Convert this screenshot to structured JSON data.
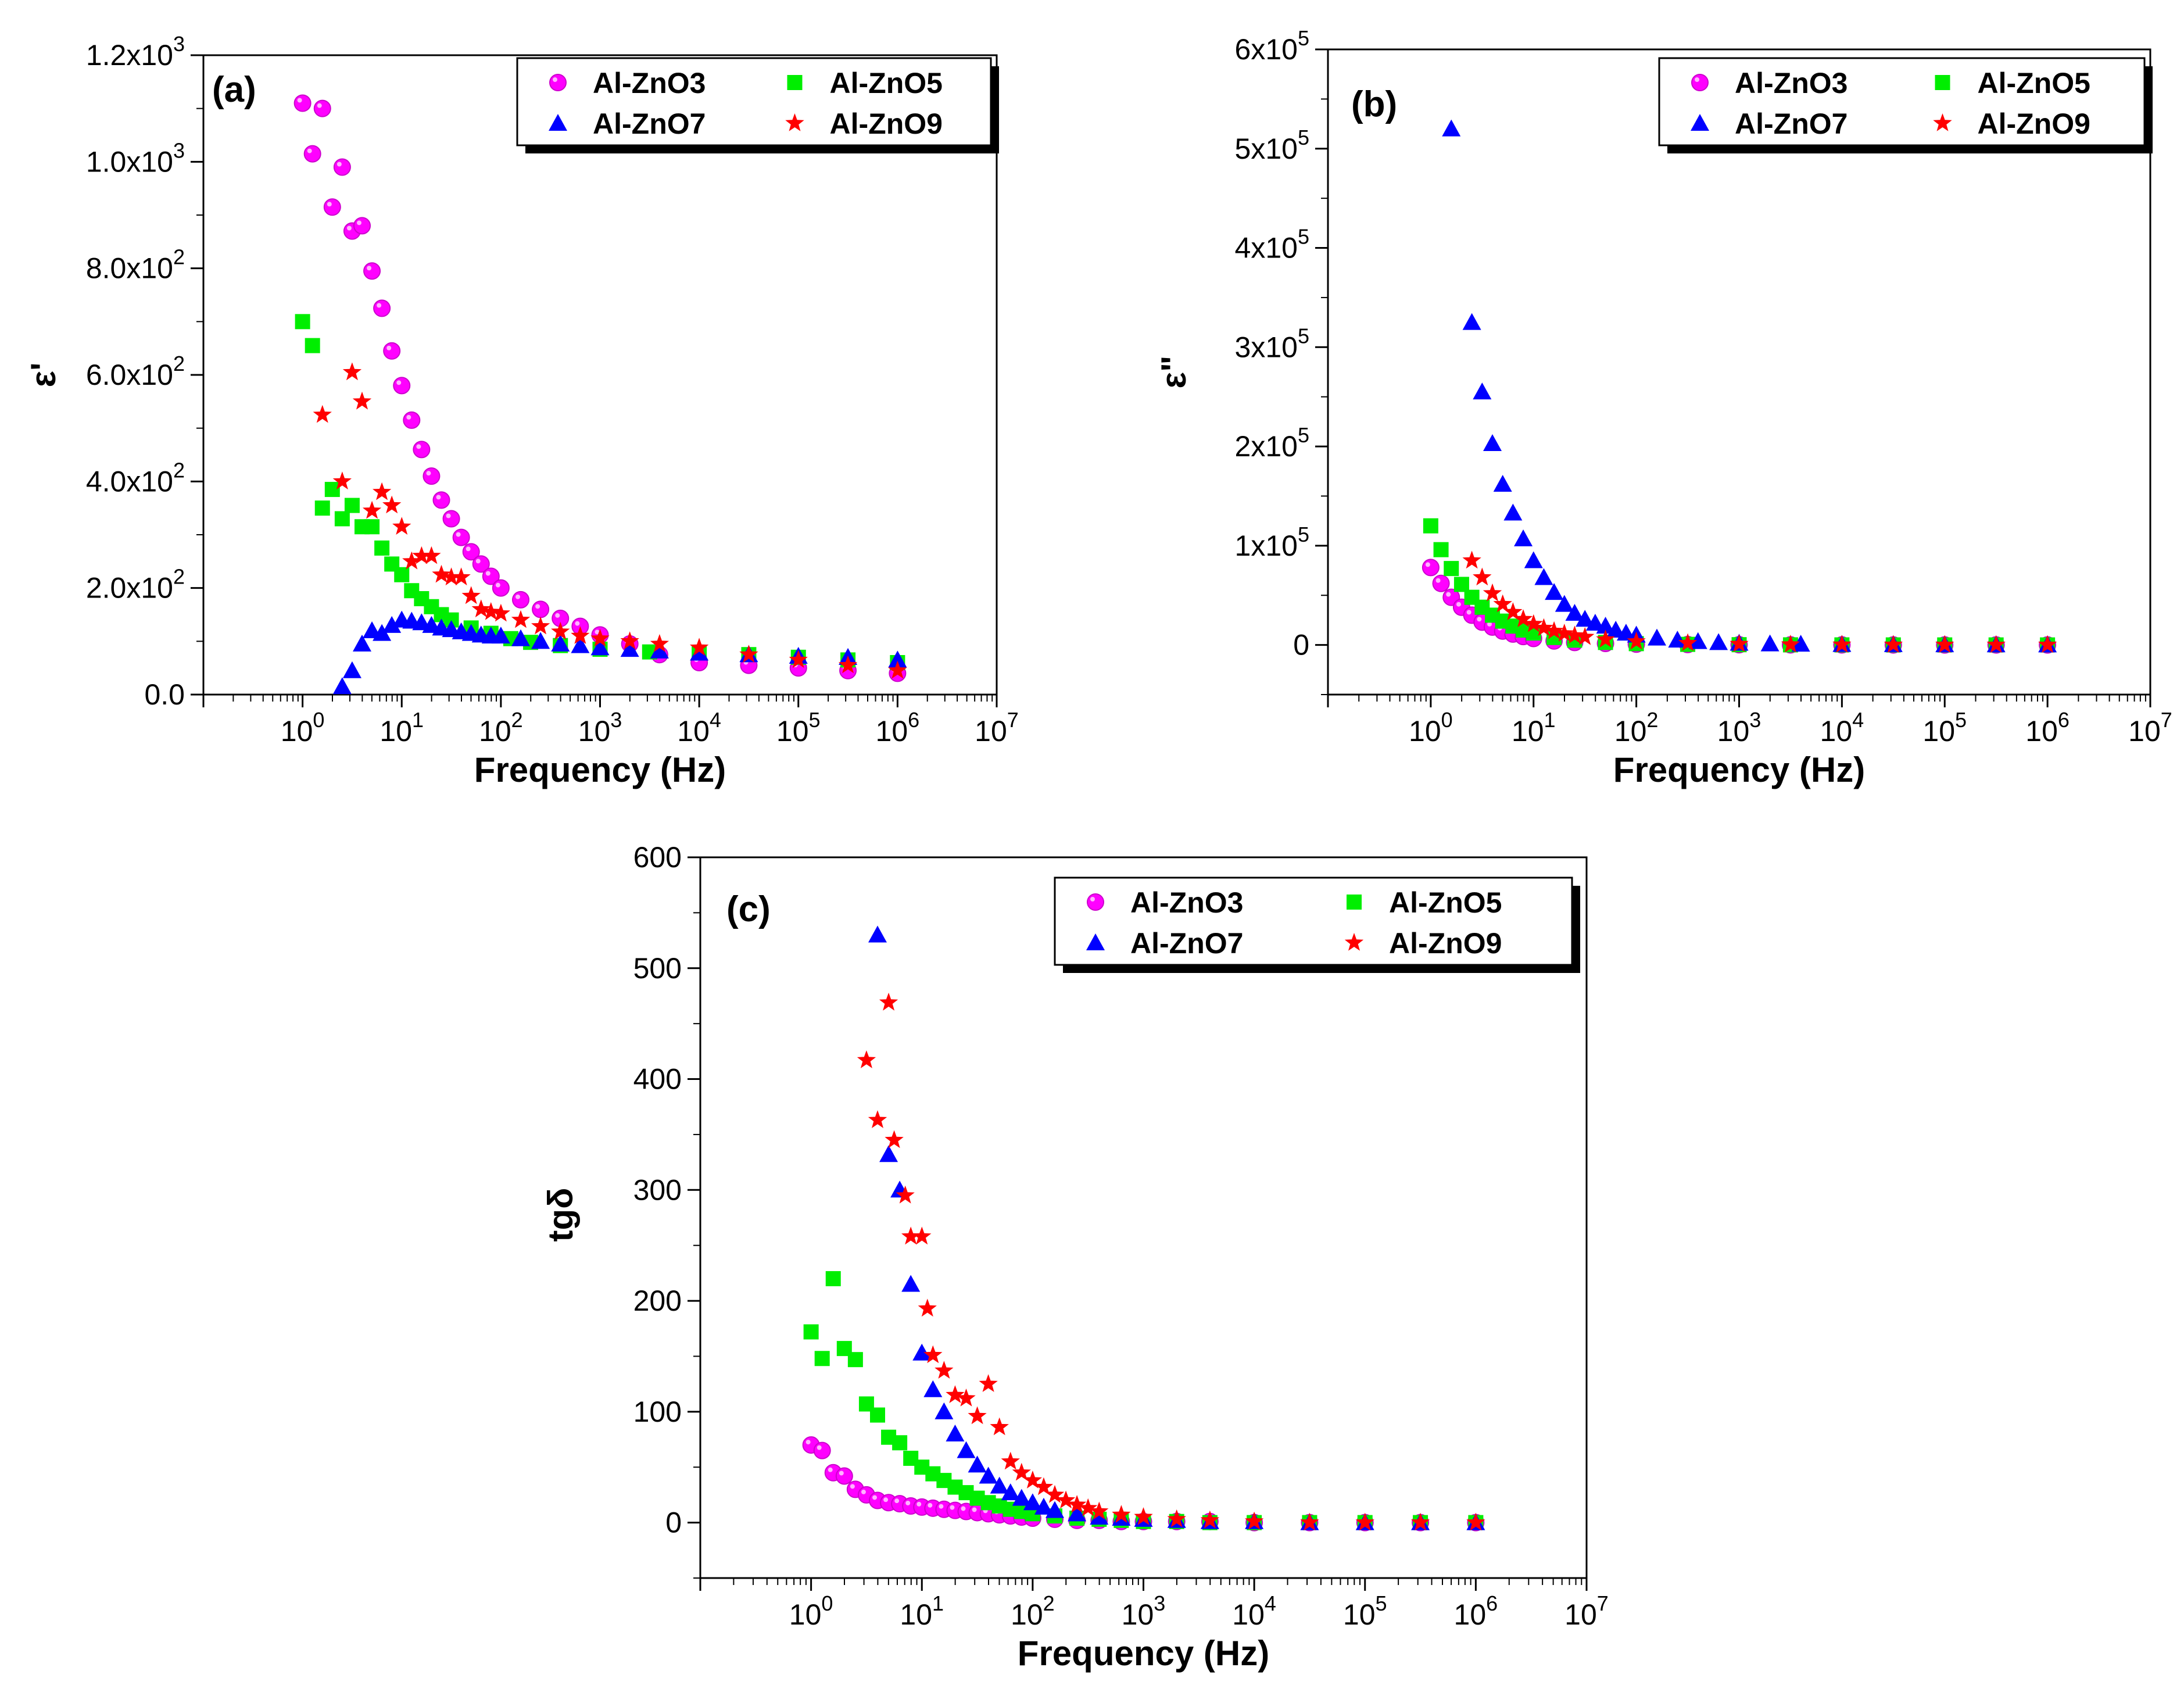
{
  "colors": {
    "Al-ZnO3": "#ff00ff",
    "Al-ZnO5": "#00ee00",
    "Al-ZnO7": "#0000ff",
    "Al-ZnO9": "#ff0000"
  },
  "chart_data": [
    {
      "type": "scatter",
      "panel": "(a)",
      "xlabel": "Frequency (Hz)",
      "ylabel": "ε'",
      "xscale": "log",
      "xlim_exp": [
        -1,
        7
      ],
      "ylim": [
        0,
        1200
      ],
      "y_ticks": [
        0,
        200,
        400,
        600,
        800,
        1000,
        1200
      ],
      "y_tick_labels": [
        {
          "mantissa": "0.0",
          "exp": ""
        },
        {
          "mantissa": "2.0x10",
          "exp": "2"
        },
        {
          "mantissa": "4.0x10",
          "exp": "2"
        },
        {
          "mantissa": "6.0x10",
          "exp": "2"
        },
        {
          "mantissa": "8.0x10",
          "exp": "2"
        },
        {
          "mantissa": "1.0x10",
          "exp": "3"
        },
        {
          "mantissa": "1.2x10",
          "exp": "3"
        }
      ],
      "x_tick_exps": [
        "0",
        "1",
        "2",
        "3",
        "4",
        "5",
        "6",
        "7"
      ],
      "legend": [
        "Al-ZnO3",
        "Al-ZnO5",
        "Al-ZnO7",
        "Al-ZnO9"
      ],
      "legend_position": "top-right",
      "series": [
        {
          "name": "Al-ZnO3",
          "marker": "sphere",
          "log_x": [
            0.0,
            0.1,
            0.2,
            0.3,
            0.4,
            0.5,
            0.6,
            0.7,
            0.8,
            0.9,
            1.0,
            1.1,
            1.2,
            1.3,
            1.4,
            1.5,
            1.6,
            1.7,
            1.8,
            1.9,
            2.0,
            2.2,
            2.4,
            2.6,
            2.8,
            3.0,
            3.3,
            3.6,
            4.0,
            4.5,
            5.0,
            5.5,
            6.0
          ],
          "y": [
            1110,
            1015,
            1100,
            915,
            990,
            870,
            880,
            795,
            725,
            645,
            580,
            515,
            460,
            410,
            365,
            330,
            295,
            268,
            245,
            222,
            200,
            178,
            160,
            143,
            128,
            112,
            95,
            75,
            60,
            55,
            50,
            45,
            40
          ]
        },
        {
          "name": "Al-ZnO5",
          "marker": "square",
          "log_x": [
            0.0,
            0.1,
            0.2,
            0.3,
            0.4,
            0.5,
            0.6,
            0.7,
            0.8,
            0.9,
            1.0,
            1.1,
            1.2,
            1.3,
            1.4,
            1.5,
            1.7,
            1.9,
            2.1,
            2.3,
            2.6,
            3.0,
            3.5,
            4.0,
            4.5,
            5.0,
            5.5,
            6.0
          ],
          "y": [
            700,
            655,
            350,
            385,
            330,
            355,
            315,
            315,
            275,
            245,
            225,
            195,
            180,
            165,
            150,
            140,
            125,
            115,
            105,
            98,
            92,
            85,
            80,
            78,
            75,
            70,
            65,
            60
          ]
        },
        {
          "name": "Al-ZnO7",
          "marker": "triangle",
          "log_x": [
            0.4,
            0.5,
            0.6,
            0.7,
            0.8,
            0.9,
            1.0,
            1.1,
            1.2,
            1.3,
            1.4,
            1.5,
            1.6,
            1.7,
            1.8,
            1.9,
            2.0,
            2.2,
            2.4,
            2.6,
            2.8,
            3.0,
            3.3,
            3.6,
            4.0,
            4.5,
            5.0,
            5.5,
            6.0
          ],
          "y": [
            15,
            45,
            95,
            120,
            115,
            130,
            140,
            138,
            135,
            130,
            125,
            122,
            118,
            115,
            112,
            110,
            110,
            105,
            100,
            95,
            92,
            88,
            85,
            82,
            78,
            75,
            72,
            70,
            65
          ]
        },
        {
          "name": "Al-ZnO9",
          "marker": "star",
          "log_x": [
            0.2,
            0.4,
            0.5,
            0.6,
            0.7,
            0.8,
            0.9,
            1.0,
            1.1,
            1.2,
            1.3,
            1.4,
            1.5,
            1.6,
            1.7,
            1.8,
            1.9,
            2.0,
            2.2,
            2.4,
            2.6,
            2.8,
            3.0,
            3.3,
            3.6,
            4.0,
            4.5,
            5.0,
            5.5,
            6.0
          ],
          "y": [
            525,
            400,
            605,
            550,
            345,
            380,
            355,
            315,
            250,
            260,
            260,
            225,
            220,
            220,
            185,
            160,
            155,
            152,
            140,
            128,
            118,
            110,
            105,
            100,
            95,
            88,
            75,
            65,
            55,
            45
          ]
        }
      ]
    },
    {
      "type": "scatter",
      "panel": "(b)",
      "xlabel": "Frequency (Hz)",
      "ylabel": "ε\"",
      "xscale": "log",
      "xlim_exp": [
        -1,
        7
      ],
      "ylim": [
        -50000,
        600000
      ],
      "y_ticks": [
        0,
        100000,
        200000,
        300000,
        400000,
        500000,
        600000
      ],
      "y_tick_labels": [
        {
          "mantissa": "0",
          "exp": ""
        },
        {
          "mantissa": "1x10",
          "exp": "5"
        },
        {
          "mantissa": "2x10",
          "exp": "5"
        },
        {
          "mantissa": "3x10",
          "exp": "5"
        },
        {
          "mantissa": "4x10",
          "exp": "5"
        },
        {
          "mantissa": "5x10",
          "exp": "5"
        },
        {
          "mantissa": "6x10",
          "exp": "5"
        }
      ],
      "x_tick_exps": [
        "0",
        "1",
        "2",
        "3",
        "4",
        "5",
        "6",
        "7"
      ],
      "legend": [
        "Al-ZnO3",
        "Al-ZnO5",
        "Al-ZnO7",
        "Al-ZnO9"
      ],
      "legend_position": "top-right",
      "series": [
        {
          "name": "Al-ZnO3",
          "marker": "sphere",
          "log_x": [
            0.0,
            0.1,
            0.2,
            0.3,
            0.4,
            0.5,
            0.6,
            0.7,
            0.8,
            0.9,
            1.0,
            1.2,
            1.4,
            1.7,
            2.0,
            2.5,
            3.0,
            3.5,
            4.0,
            4.5,
            5.0,
            5.5,
            6.0
          ],
          "y": [
            78000,
            62000,
            48000,
            38000,
            30000,
            23000,
            18000,
            14000,
            11000,
            8500,
            6500,
            4000,
            2500,
            1500,
            800,
            400,
            200,
            100,
            50,
            30,
            20,
            10,
            5
          ]
        },
        {
          "name": "Al-ZnO5",
          "marker": "square",
          "log_x": [
            0.0,
            0.1,
            0.2,
            0.3,
            0.4,
            0.5,
            0.6,
            0.7,
            0.8,
            0.9,
            1.0,
            1.2,
            1.4,
            1.7,
            2.0,
            2.5,
            3.0,
            3.5,
            4.0,
            4.5,
            5.0,
            5.5,
            6.0
          ],
          "y": [
            120000,
            96000,
            77000,
            61000,
            48000,
            38000,
            30000,
            24000,
            19000,
            15000,
            12000,
            7500,
            4800,
            2500,
            1300,
            600,
            250,
            100,
            50,
            30,
            20,
            10,
            5
          ]
        },
        {
          "name": "Al-ZnO7",
          "marker": "triangle",
          "log_x": [
            0.2,
            0.4,
            0.5,
            0.6,
            0.7,
            0.8,
            0.9,
            1.0,
            1.1,
            1.2,
            1.3,
            1.4,
            1.5,
            1.6,
            1.7,
            1.8,
            1.9,
            2.0,
            2.2,
            2.4,
            2.6,
            2.8,
            3.0,
            3.3,
            3.6,
            4.0,
            4.5,
            5.0,
            5.5,
            6.0
          ],
          "y": [
            520000,
            325000,
            255000,
            203000,
            162000,
            133000,
            107000,
            85000,
            68000,
            53000,
            41000,
            32000,
            26000,
            22000,
            19000,
            15000,
            12000,
            10000,
            7000,
            5000,
            3500,
            2500,
            1800,
            1200,
            900,
            600,
            400,
            300,
            200,
            150
          ]
        },
        {
          "name": "Al-ZnO9",
          "marker": "star",
          "log_x": [
            0.4,
            0.5,
            0.6,
            0.7,
            0.8,
            0.9,
            1.0,
            1.1,
            1.2,
            1.3,
            1.4,
            1.5,
            1.7,
            2.0,
            2.5,
            3.0,
            3.5,
            4.0,
            4.5,
            5.0,
            5.5,
            6.0
          ],
          "y": [
            85000,
            68000,
            52000,
            41000,
            33000,
            26000,
            21000,
            17000,
            14000,
            11500,
            9500,
            8000,
            5500,
            3500,
            1800,
            900,
            400,
            200,
            100,
            50,
            30,
            15
          ]
        }
      ]
    },
    {
      "type": "scatter",
      "panel": "(c)",
      "xlabel": "Frequency (Hz)",
      "ylabel": "tgδ",
      "xscale": "log",
      "xlim_exp": [
        -1,
        7
      ],
      "ylim": [
        -50,
        600
      ],
      "y_ticks": [
        0,
        100,
        200,
        300,
        400,
        500,
        600
      ],
      "y_tick_labels": [
        {
          "mantissa": "0",
          "exp": ""
        },
        {
          "mantissa": "100",
          "exp": ""
        },
        {
          "mantissa": "200",
          "exp": ""
        },
        {
          "mantissa": "300",
          "exp": ""
        },
        {
          "mantissa": "400",
          "exp": ""
        },
        {
          "mantissa": "500",
          "exp": ""
        },
        {
          "mantissa": "600",
          "exp": ""
        }
      ],
      "x_tick_exps": [
        "0",
        "1",
        "2",
        "3",
        "4",
        "5",
        "6",
        "7"
      ],
      "legend": [
        "Al-ZnO3",
        "Al-ZnO5",
        "Al-ZnO7",
        "Al-ZnO9"
      ],
      "legend_position": "top-right",
      "series": [
        {
          "name": "Al-ZnO3",
          "marker": "sphere",
          "log_x": [
            0.0,
            0.1,
            0.2,
            0.3,
            0.4,
            0.5,
            0.6,
            0.7,
            0.8,
            0.9,
            1.0,
            1.1,
            1.2,
            1.3,
            1.4,
            1.5,
            1.6,
            1.7,
            1.8,
            1.9,
            2.0,
            2.2,
            2.4,
            2.6,
            2.8,
            3.0,
            3.3,
            3.6,
            4.0,
            4.5,
            5.0,
            5.5,
            6.0
          ],
          "y": [
            70,
            65,
            45,
            42,
            30,
            25,
            20,
            18,
            17,
            15,
            14,
            13,
            12,
            11,
            10,
            9,
            8,
            7,
            6,
            5,
            4,
            3,
            2,
            2,
            1,
            1,
            1,
            1,
            0,
            0,
            0,
            0,
            0
          ]
        },
        {
          "name": "Al-ZnO5",
          "marker": "square",
          "log_x": [
            0.0,
            0.1,
            0.2,
            0.3,
            0.4,
            0.5,
            0.6,
            0.7,
            0.8,
            0.9,
            1.0,
            1.1,
            1.2,
            1.3,
            1.4,
            1.5,
            1.6,
            1.7,
            1.8,
            1.9,
            2.0,
            2.2,
            2.4,
            2.6,
            2.8,
            3.0,
            3.3,
            3.6,
            4.0,
            4.5,
            5.0,
            5.5,
            6.0
          ],
          "y": [
            172,
            148,
            220,
            157,
            147,
            107,
            97,
            77,
            72,
            58,
            50,
            44,
            38,
            32,
            27,
            22,
            18,
            15,
            12,
            10,
            8,
            6,
            4,
            3,
            2,
            1,
            1,
            0,
            0,
            0,
            0,
            0,
            0
          ]
        },
        {
          "name": "Al-ZnO7",
          "marker": "triangle",
          "log_x": [
            0.6,
            0.7,
            0.8,
            0.9,
            1.0,
            1.1,
            1.2,
            1.3,
            1.4,
            1.5,
            1.6,
            1.7,
            1.8,
            1.9,
            2.0,
            2.1,
            2.2,
            2.4,
            2.6,
            2.8,
            3.0,
            3.3,
            3.6,
            4.0,
            4.5,
            5.0,
            5.5,
            6.0
          ],
          "y": [
            530,
            332,
            300,
            215,
            153,
            120,
            100,
            80,
            65,
            52,
            42,
            33,
            27,
            22,
            18,
            14,
            11,
            8,
            5,
            4,
            3,
            2,
            1,
            1,
            0,
            0,
            0,
            0
          ]
        },
        {
          "name": "Al-ZnO9",
          "marker": "star",
          "log_x": [
            0.5,
            0.6,
            0.7,
            0.75,
            0.85,
            0.9,
            1.0,
            1.05,
            1.1,
            1.2,
            1.3,
            1.4,
            1.5,
            1.6,
            1.7,
            1.8,
            1.9,
            2.0,
            2.1,
            2.2,
            2.3,
            2.4,
            2.5,
            2.6,
            2.8,
            3.0,
            3.3,
            3.6,
            4.0,
            4.5,
            5.0,
            5.5,
            6.0
          ],
          "y": [
            417,
            363,
            469,
            345,
            295,
            258,
            258,
            193,
            151,
            137,
            115,
            112,
            96,
            125,
            86,
            55,
            45,
            38,
            32,
            25,
            20,
            16,
            13,
            10,
            7,
            5,
            3,
            2,
            1,
            0,
            0,
            0,
            0
          ]
        }
      ]
    }
  ]
}
